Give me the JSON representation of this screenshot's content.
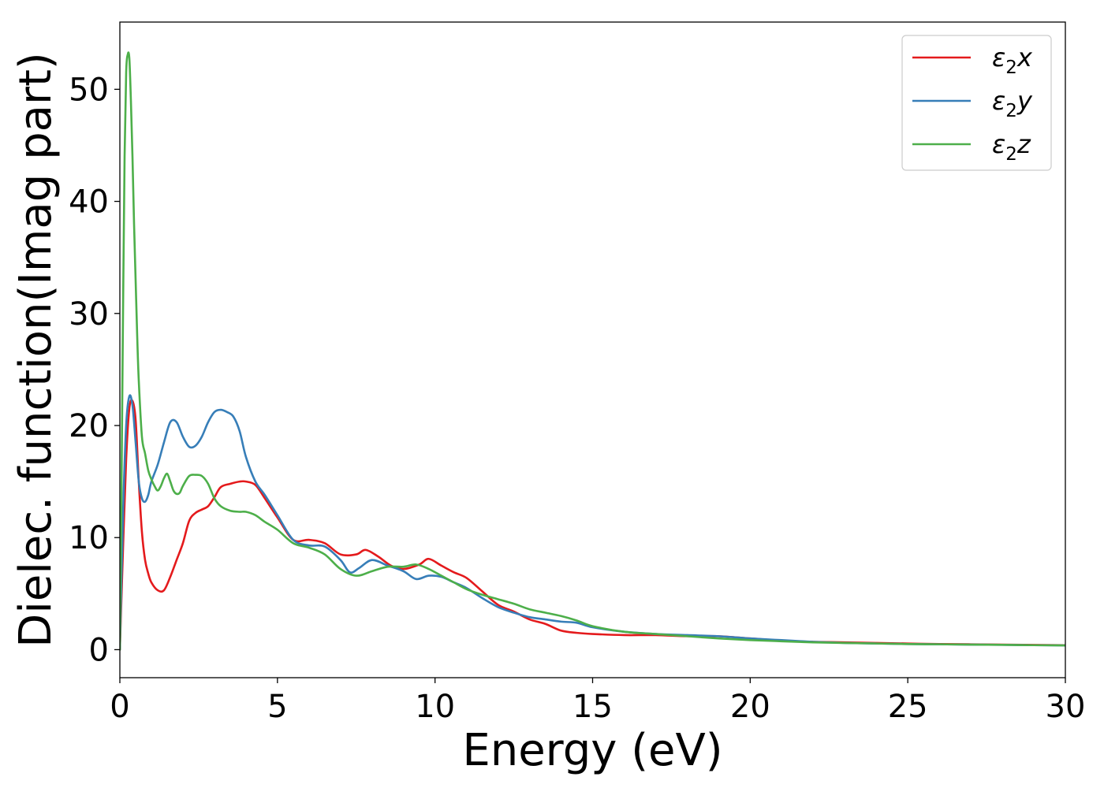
{
  "chart_data": {
    "type": "line",
    "title": "",
    "xlabel": "Energy (eV)",
    "ylabel": "Dielec. function(Imag part)",
    "xlim": [
      0,
      30
    ],
    "ylim": [
      -2.5,
      56
    ],
    "xticks": [
      0,
      5,
      10,
      15,
      20,
      25,
      30
    ],
    "yticks": [
      0,
      10,
      20,
      30,
      40,
      50
    ],
    "grid": false,
    "legend_position": "top-right",
    "series": [
      {
        "name": "ε₂x",
        "legend_base": "ε",
        "legend_sub": "2",
        "legend_suffix": "x",
        "color": "#e41a1c",
        "x": [
          0,
          0.1,
          0.2,
          0.3,
          0.4,
          0.5,
          0.6,
          0.7,
          0.8,
          0.9,
          1.0,
          1.2,
          1.4,
          1.6,
          1.8,
          2.0,
          2.2,
          2.4,
          2.6,
          2.8,
          3.0,
          3.2,
          3.5,
          3.8,
          4.0,
          4.3,
          4.6,
          5.0,
          5.5,
          6.0,
          6.5,
          7.0,
          7.5,
          7.8,
          8.2,
          8.6,
          9.0,
          9.5,
          9.8,
          10.2,
          10.6,
          11.0,
          11.5,
          12.0,
          12.5,
          13.0,
          13.5,
          14.0,
          14.5,
          15.0,
          16.0,
          17.0,
          18.0,
          19.0,
          20.0,
          21.0,
          22.0,
          23.0,
          24.0,
          25.0,
          26.0,
          27.0,
          28.0,
          29.0,
          30.0
        ],
        "y": [
          0,
          9,
          17,
          21.5,
          22.2,
          20.5,
          15,
          10.5,
          8,
          6.8,
          6,
          5.3,
          5.3,
          6.5,
          8,
          9.5,
          11.5,
          12.2,
          12.5,
          12.8,
          13.6,
          14.5,
          14.8,
          15.0,
          15.0,
          14.7,
          13.5,
          11.8,
          9.8,
          9.8,
          9.5,
          8.5,
          8.5,
          8.9,
          8.3,
          7.5,
          7.2,
          7.6,
          8.1,
          7.5,
          6.9,
          6.4,
          5.2,
          4.0,
          3.4,
          2.7,
          2.3,
          1.7,
          1.5,
          1.4,
          1.3,
          1.3,
          1.2,
          1.2,
          1.0,
          0.8,
          0.7,
          0.65,
          0.6,
          0.55,
          0.5,
          0.48,
          0.45,
          0.42,
          0.4
        ]
      },
      {
        "name": "ε₂y",
        "legend_base": "ε",
        "legend_sub": "2",
        "legend_suffix": "y",
        "color": "#377eb8",
        "x": [
          0,
          0.1,
          0.2,
          0.3,
          0.4,
          0.5,
          0.6,
          0.7,
          0.8,
          0.9,
          1.0,
          1.2,
          1.4,
          1.6,
          1.8,
          2.0,
          2.2,
          2.4,
          2.6,
          2.8,
          3.0,
          3.2,
          3.4,
          3.6,
          3.8,
          4.0,
          4.3,
          4.6,
          5.0,
          5.5,
          6.0,
          6.5,
          7.0,
          7.3,
          7.6,
          8.0,
          8.5,
          9.0,
          9.4,
          9.8,
          10.2,
          10.6,
          11.0,
          11.5,
          12.0,
          12.5,
          13.0,
          13.5,
          14.0,
          14.5,
          15.0,
          16.0,
          17.0,
          18.0,
          19.0,
          20.0,
          21.0,
          22.0,
          23.0,
          24.0,
          25.0,
          26.0,
          27.0,
          28.0,
          29.0,
          30.0
        ],
        "y": [
          0,
          12,
          20,
          22.6,
          21.8,
          18.5,
          15,
          13.5,
          13.2,
          13.8,
          15,
          16.5,
          18.5,
          20.3,
          20.3,
          19,
          18.1,
          18.2,
          19,
          20.3,
          21.2,
          21.4,
          21.2,
          20.8,
          19.5,
          17.2,
          15,
          13.8,
          12,
          9.8,
          9.3,
          9.2,
          8.0,
          6.9,
          7.3,
          8.0,
          7.5,
          7.0,
          6.3,
          6.6,
          6.5,
          6.0,
          5.5,
          4.6,
          3.8,
          3.3,
          2.9,
          2.7,
          2.5,
          2.4,
          2.0,
          1.6,
          1.4,
          1.3,
          1.2,
          1.0,
          0.85,
          0.7,
          0.6,
          0.55,
          0.5,
          0.48,
          0.45,
          0.43,
          0.4,
          0.38
        ]
      },
      {
        "name": "ε₂z",
        "legend_base": "ε",
        "legend_sub": "2",
        "legend_suffix": "z",
        "color": "#4daf4a",
        "x": [
          0,
          0.05,
          0.1,
          0.15,
          0.2,
          0.25,
          0.3,
          0.35,
          0.4,
          0.45,
          0.5,
          0.55,
          0.6,
          0.7,
          0.8,
          0.9,
          1.0,
          1.1,
          1.2,
          1.3,
          1.4,
          1.5,
          1.6,
          1.7,
          1.8,
          1.9,
          2.0,
          2.2,
          2.4,
          2.6,
          2.8,
          3.0,
          3.2,
          3.5,
          3.8,
          4.0,
          4.3,
          4.6,
          5.0,
          5.5,
          6.0,
          6.5,
          7.0,
          7.5,
          8.0,
          8.5,
          9.0,
          9.4,
          9.8,
          10.2,
          10.6,
          11.0,
          11.5,
          12.0,
          12.5,
          13.0,
          13.5,
          14.0,
          14.5,
          15.0,
          16.0,
          17.0,
          18.0,
          19.0,
          20.0,
          21.0,
          22.0,
          23.0,
          24.0,
          25.0,
          26.0,
          27.0,
          28.0,
          29.0,
          30.0
        ],
        "y": [
          0,
          14,
          30,
          44,
          51.5,
          53.1,
          52.8,
          49,
          44,
          38,
          33,
          28,
          24,
          19,
          17.5,
          16,
          15.2,
          14.6,
          14.2,
          14.6,
          15.3,
          15.7,
          15.0,
          14.2,
          13.9,
          14.0,
          14.6,
          15.5,
          15.6,
          15.5,
          14.8,
          13.5,
          12.8,
          12.4,
          12.3,
          12.3,
          12.0,
          11.4,
          10.7,
          9.5,
          9.1,
          8.5,
          7.2,
          6.6,
          7.0,
          7.4,
          7.4,
          7.6,
          7.2,
          6.6,
          6.0,
          5.4,
          4.9,
          4.5,
          4.1,
          3.6,
          3.3,
          3.0,
          2.6,
          2.1,
          1.6,
          1.4,
          1.2,
          1.0,
          0.85,
          0.75,
          0.65,
          0.6,
          0.55,
          0.5,
          0.48,
          0.45,
          0.43,
          0.4,
          0.38
        ]
      }
    ]
  }
}
